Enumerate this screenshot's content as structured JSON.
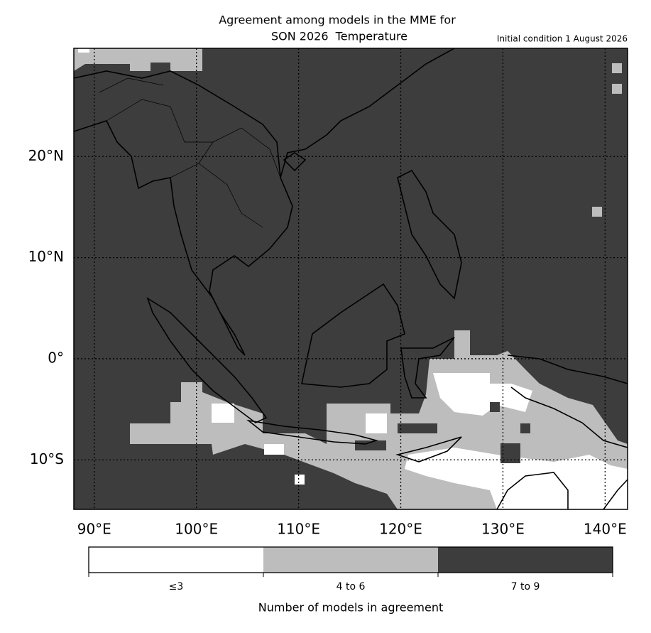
{
  "map": {
    "title": [
      "Agreement among models in the MME for",
      "SON 2026  Temperature"
    ],
    "subtitle": "Initial condition 1 August 2026",
    "xlim": [
      88,
      142.2
    ],
    "ylim": [
      -14.9,
      30.7
    ],
    "lon_ticks": [
      {
        "value": 90,
        "label": "90°E"
      },
      {
        "value": 100,
        "label": "100°E"
      },
      {
        "value": 110,
        "label": "110°E"
      },
      {
        "value": 120,
        "label": "120°E"
      },
      {
        "value": 130,
        "label": "130°E"
      },
      {
        "value": 140,
        "label": "140°E"
      }
    ],
    "lat_ticks": [
      {
        "value": 20,
        "label": "20°N"
      },
      {
        "value": 10,
        "label": "10°N"
      },
      {
        "value": 0,
        "label": "0°"
      },
      {
        "value": -10,
        "label": "10°S"
      }
    ],
    "colorbar": {
      "categories": [
        "≤3",
        "4 to 6",
        "7 to 9"
      ],
      "colors": [
        "#ffffff",
        "#bdbdbd",
        "#3d3d3d"
      ],
      "label": "Number of models in agreement"
    }
  }
}
